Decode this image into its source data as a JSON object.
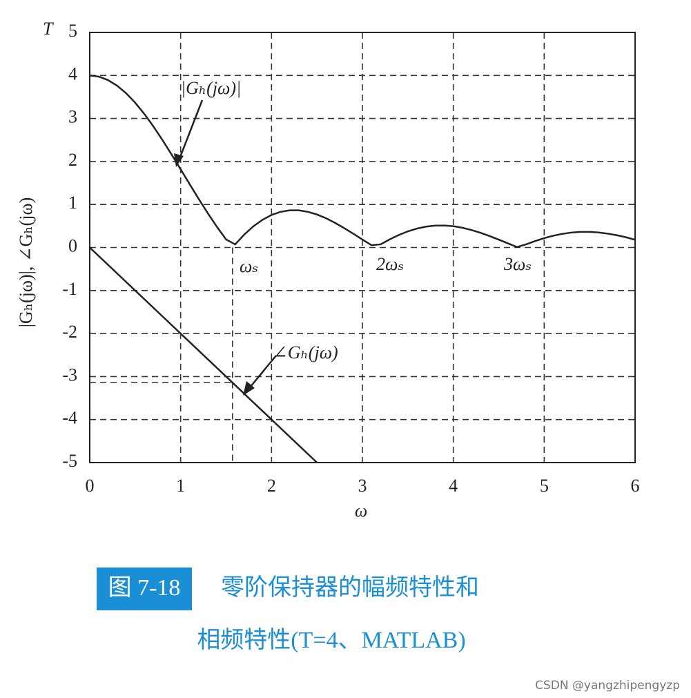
{
  "chart_data": {
    "type": "line",
    "xlabel": "ω",
    "ylabel": "|Gₕ(jω)|, ∠Gₕ(jω)",
    "ylabel_top": "T",
    "xlim": [
      0,
      6
    ],
    "xticks": [
      0,
      1,
      2,
      3,
      4,
      5,
      6
    ],
    "ylim": [
      -5,
      5
    ],
    "yticks": [
      -5,
      -4,
      -3,
      -2,
      -1,
      0,
      1,
      2,
      3,
      4,
      5
    ],
    "grid": true,
    "series": [
      {
        "name": "|Gₕ(jω)|",
        "color": "#222222",
        "x": [
          0,
          0.1,
          0.2,
          0.3,
          0.4,
          0.5,
          0.6,
          0.7,
          0.8,
          0.9,
          1.0,
          1.1,
          1.2,
          1.3,
          1.4,
          1.5,
          1.6,
          1.7,
          1.8,
          1.9,
          2.0,
          2.1,
          2.2,
          2.3,
          2.4,
          2.5,
          2.6,
          2.7,
          2.8,
          2.9,
          3.0,
          3.1,
          3.2,
          3.3,
          3.4,
          3.5,
          3.6,
          3.7,
          3.8,
          3.9,
          4.0,
          4.1,
          4.2,
          4.3,
          4.4,
          4.5,
          4.6,
          4.7,
          4.8,
          4.9,
          5.0,
          5.1,
          5.2,
          5.3,
          5.4,
          5.5,
          5.6,
          5.7,
          5.8,
          5.9,
          6.0
        ],
        "values": [
          4,
          3.973,
          3.894,
          3.764,
          3.587,
          3.366,
          3.107,
          2.816,
          2.499,
          2.164,
          1.819,
          1.47,
          1.126,
          0.793,
          0.479,
          0.188,
          0.073,
          0.301,
          0.492,
          0.644,
          0.757,
          0.83,
          0.865,
          0.864,
          0.83,
          0.767,
          0.68,
          0.572,
          0.451,
          0.32,
          0.186,
          0.054,
          0.073,
          0.189,
          0.291,
          0.375,
          0.441,
          0.486,
          0.509,
          0.512,
          0.495,
          0.459,
          0.407,
          0.342,
          0.266,
          0.183,
          0.097,
          0.011,
          0.073,
          0.15,
          0.218,
          0.274,
          0.318,
          0.348,
          0.363,
          0.364,
          0.349,
          0.322,
          0.285,
          0.239,
          0.179
        ]
      },
      {
        "name": "∠Gₕ(jω)",
        "color": "#222222",
        "x": [
          0,
          2.5
        ],
        "values": [
          0,
          -5
        ]
      }
    ],
    "markers": [
      {
        "x": 1.571,
        "y": -3.142
      }
    ],
    "annotations": [
      {
        "text": "ωₛ"
      },
      {
        "text": "2ωₛ"
      },
      {
        "text": "3ωₛ"
      }
    ],
    "caption": {
      "number": "图 7-18",
      "line1": "零阶保持器的幅频特性和",
      "line2": "相频特性(T=4、MATLAB)"
    },
    "watermark": "CSDN @yangzhipengyzp"
  }
}
